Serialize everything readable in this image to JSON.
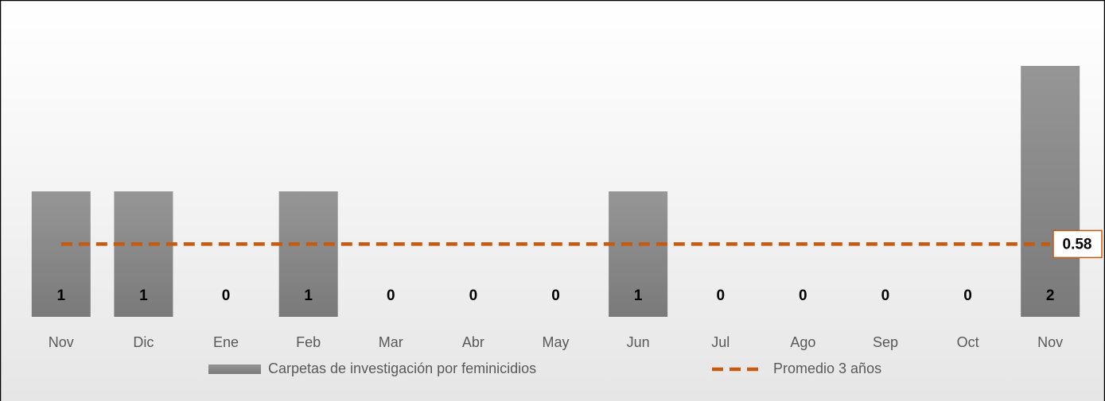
{
  "chart_data": {
    "type": "bar",
    "categories": [
      "Nov",
      "Dic",
      "Ene",
      "Feb",
      "Mar",
      "Abr",
      "May",
      "Jun",
      "Jul",
      "Ago",
      "Sep",
      "Oct",
      "Nov"
    ],
    "series": [
      {
        "name": "Carpetas de investigación por feminicidios",
        "color": "#8c8c8c",
        "type": "bar",
        "values": [
          1,
          1,
          0,
          1,
          0,
          0,
          0,
          1,
          0,
          0,
          0,
          0,
          2
        ]
      },
      {
        "name": "Promedio 3 años",
        "color": "#c55a11",
        "type": "line",
        "values": [
          0.58,
          0.58,
          0.58,
          0.58,
          0.58,
          0.58,
          0.58,
          0.58,
          0.58,
          0.58,
          0.58,
          0.58,
          0.58
        ]
      }
    ],
    "ylim": [
      0,
      2
    ],
    "legend": "bottom"
  }
}
